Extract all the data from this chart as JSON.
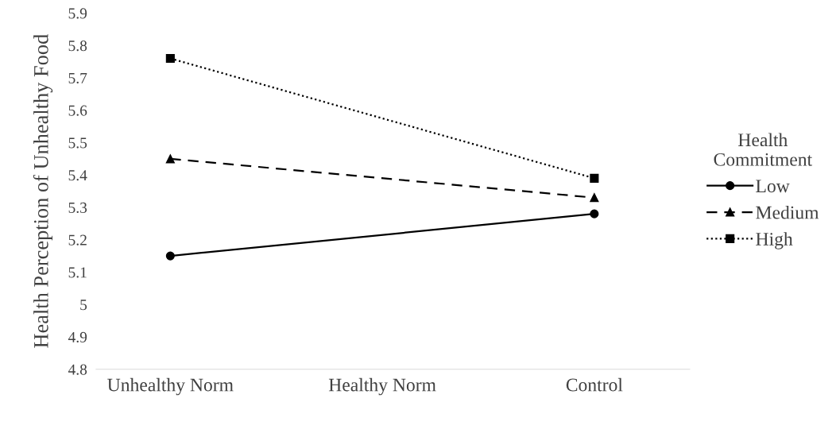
{
  "chart_data": {
    "type": "line",
    "ylabel": "Health Perception of Unhealthy Food",
    "legend_title": "Health\nCommitment",
    "categories": [
      "Unhealthy Norm",
      "Healthy Norm",
      "Control"
    ],
    "ylim": [
      4.8,
      5.9
    ],
    "yticks": [
      4.8,
      4.9,
      5,
      5.1,
      5.2,
      5.3,
      5.4,
      5.5,
      5.6,
      5.7,
      5.8,
      5.9
    ],
    "grid": false,
    "legend": "right",
    "series": [
      {
        "name": "Low",
        "color": "#000000",
        "values": [
          5.15,
          null,
          5.28
        ],
        "marker": "circle",
        "line_style": "solid"
      },
      {
        "name": "Medium",
        "color": "#000000",
        "values": [
          5.45,
          null,
          5.33
        ],
        "marker": "triangle",
        "line_style": "dashed"
      },
      {
        "name": "High",
        "color": "#000000",
        "values": [
          5.76,
          null,
          5.39
        ],
        "marker": "square",
        "line_style": "dotted"
      }
    ]
  }
}
